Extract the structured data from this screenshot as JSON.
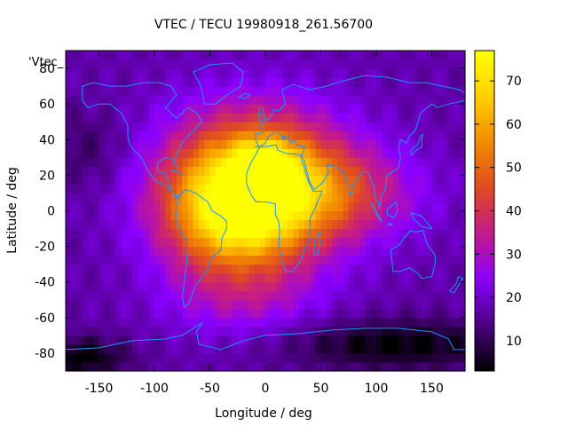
{
  "chart_data": {
    "type": "heatmap",
    "title": "VTEC / TECU 19980918_261.56700",
    "xlabel": "Longitude / deg",
    "ylabel": "Latitude / deg",
    "xlim": [
      -180,
      180
    ],
    "ylim": [
      -90,
      90
    ],
    "x_ticks": [
      -150,
      -100,
      -50,
      0,
      50,
      100,
      150
    ],
    "y_ticks": [
      80,
      60,
      40,
      20,
      0,
      -20,
      -40,
      -60,
      -80
    ],
    "colorbar": {
      "range": [
        3,
        77
      ],
      "ticks": [
        10,
        20,
        30,
        40,
        50,
        60,
        70
      ]
    },
    "colormap": [
      "#000000",
      "#4b0080",
      "#8a00ff",
      "#c41a8a",
      "#e04a20",
      "#f28a00",
      "#ffd000",
      "#ffff00"
    ],
    "key_label": "'Vtec_",
    "grid_step_deg": 5,
    "field_model": {
      "background": 17,
      "components": [
        {
          "lon": -10,
          "lat": 15,
          "amp": 52,
          "sigma_lon": 55,
          "sigma_lat": 28
        },
        {
          "lon": -30,
          "lat": -5,
          "amp": 30,
          "sigma_lon": 40,
          "sigma_lat": 22
        },
        {
          "lon": 0,
          "lat": 25,
          "amp": 22,
          "sigma_lon": 18,
          "sigma_lat": 10
        },
        {
          "lon": 60,
          "lat": 10,
          "amp": 18,
          "sigma_lon": 55,
          "sigma_lat": 18
        },
        {
          "lon": -20,
          "lat": -50,
          "amp": 10,
          "sigma_lon": 50,
          "sigma_lat": 15
        },
        {
          "lon": 120,
          "lat": -75,
          "amp": -14,
          "sigma_lon": 70,
          "sigma_lat": 10
        },
        {
          "lon": -165,
          "lat": -82,
          "amp": -14,
          "sigma_lon": 30,
          "sigma_lat": 8
        },
        {
          "lon": -160,
          "lat": 35,
          "amp": -6,
          "sigma_lon": 25,
          "sigma_lat": 15
        }
      ]
    },
    "coastline_color": "#1e90ff",
    "coastlines": [
      [
        [
          -165,
          70
        ],
        [
          -155,
          72
        ],
        [
          -140,
          70
        ],
        [
          -125,
          70
        ],
        [
          -110,
          72
        ],
        [
          -95,
          72
        ],
        [
          -85,
          70
        ],
        [
          -80,
          65
        ],
        [
          -90,
          58
        ],
        [
          -80,
          52
        ],
        [
          -70,
          58
        ],
        [
          -62,
          55
        ],
        [
          -57,
          50
        ],
        [
          -65,
          45
        ],
        [
          -70,
          42
        ],
        [
          -76,
          37
        ],
        [
          -80,
          32
        ],
        [
          -82,
          27
        ],
        [
          -80,
          25
        ],
        [
          -83,
          29
        ],
        [
          -90,
          30
        ],
        [
          -97,
          27
        ],
        [
          -97,
          22
        ],
        [
          -90,
          21
        ],
        [
          -87,
          15
        ],
        [
          -83,
          9
        ],
        [
          -78,
          8
        ],
        [
          -80,
          7
        ],
        [
          -86,
          12
        ],
        [
          -92,
          15
        ],
        [
          -100,
          17
        ],
        [
          -106,
          23
        ],
        [
          -112,
          30
        ],
        [
          -117,
          33
        ],
        [
          -122,
          37
        ],
        [
          -124,
          42
        ],
        [
          -124,
          48
        ],
        [
          -130,
          55
        ],
        [
          -140,
          60
        ],
        [
          -150,
          60
        ],
        [
          -160,
          58
        ],
        [
          -165,
          62
        ],
        [
          -165,
          70
        ]
      ],
      [
        [
          -78,
          8
        ],
        [
          -72,
          12
        ],
        [
          -63,
          10
        ],
        [
          -52,
          5
        ],
        [
          -48,
          0
        ],
        [
          -40,
          -3
        ],
        [
          -35,
          -6
        ],
        [
          -35,
          -10
        ],
        [
          -39,
          -15
        ],
        [
          -40,
          -22
        ],
        [
          -48,
          -26
        ],
        [
          -53,
          -34
        ],
        [
          -58,
          -38
        ],
        [
          -63,
          -42
        ],
        [
          -66,
          -47
        ],
        [
          -69,
          -52
        ],
        [
          -73,
          -54
        ],
        [
          -75,
          -48
        ],
        [
          -73,
          -40
        ],
        [
          -71,
          -30
        ],
        [
          -70,
          -18
        ],
        [
          -76,
          -12
        ],
        [
          -81,
          -5
        ],
        [
          -80,
          0
        ],
        [
          -78,
          8
        ]
      ],
      [
        [
          -55,
          60
        ],
        [
          -45,
          60
        ],
        [
          -35,
          65
        ],
        [
          -22,
          70
        ],
        [
          -20,
          78
        ],
        [
          -30,
          83
        ],
        [
          -50,
          82
        ],
        [
          -65,
          78
        ],
        [
          -58,
          70
        ],
        [
          -55,
          60
        ]
      ],
      [
        [
          -10,
          36
        ],
        [
          -6,
          36
        ],
        [
          -9,
          40
        ],
        [
          -9,
          43
        ],
        [
          -2,
          44
        ],
        [
          -5,
          48
        ],
        [
          0,
          50
        ],
        [
          5,
          53
        ],
        [
          8,
          57
        ],
        [
          12,
          56
        ],
        [
          18,
          60
        ],
        [
          15,
          68
        ],
        [
          25,
          71
        ],
        [
          40,
          68
        ],
        [
          55,
          70
        ],
        [
          70,
          73
        ],
        [
          90,
          76
        ],
        [
          110,
          75
        ],
        [
          130,
          72
        ],
        [
          145,
          72
        ],
        [
          160,
          70
        ],
        [
          175,
          68
        ],
        [
          180,
          66
        ],
        [
          180,
          62
        ],
        [
          165,
          60
        ],
        [
          155,
          58
        ],
        [
          150,
          60
        ],
        [
          140,
          55
        ],
        [
          135,
          45
        ],
        [
          130,
          42
        ],
        [
          127,
          38
        ],
        [
          122,
          40
        ],
        [
          120,
          35
        ],
        [
          122,
          30
        ],
        [
          120,
          24
        ],
        [
          110,
          20
        ],
        [
          108,
          12
        ],
        [
          105,
          9
        ],
        [
          103,
          2
        ],
        [
          99,
          8
        ],
        [
          97,
          15
        ],
        [
          92,
          22
        ],
        [
          88,
          22
        ],
        [
          80,
          15
        ],
        [
          77,
          8
        ],
        [
          73,
          18
        ],
        [
          70,
          22
        ],
        [
          62,
          25
        ],
        [
          55,
          26
        ],
        [
          57,
          22
        ],
        [
          52,
          16
        ],
        [
          44,
          12
        ],
        [
          40,
          16
        ],
        [
          35,
          28
        ],
        [
          33,
          31
        ],
        [
          35,
          36
        ],
        [
          28,
          37
        ],
        [
          26,
          40
        ],
        [
          23,
          38
        ],
        [
          20,
          42
        ],
        [
          15,
          41
        ],
        [
          18,
          40
        ],
        [
          12,
          44
        ],
        [
          8,
          44
        ],
        [
          3,
          42
        ],
        [
          0,
          38
        ],
        [
          -5,
          36
        ],
        [
          -10,
          36
        ]
      ],
      [
        [
          -17,
          21
        ],
        [
          -17,
          15
        ],
        [
          -12,
          8
        ],
        [
          -8,
          5
        ],
        [
          0,
          5
        ],
        [
          9,
          4
        ],
        [
          9,
          -2
        ],
        [
          12,
          -6
        ],
        [
          13,
          -12
        ],
        [
          12,
          -18
        ],
        [
          15,
          -28
        ],
        [
          18,
          -34
        ],
        [
          25,
          -34
        ],
        [
          32,
          -28
        ],
        [
          35,
          -22
        ],
        [
          40,
          -15
        ],
        [
          40,
          -5
        ],
        [
          45,
          2
        ],
        [
          51,
          11
        ],
        [
          43,
          11
        ],
        [
          39,
          16
        ],
        [
          33,
          28
        ],
        [
          32,
          31
        ],
        [
          25,
          32
        ],
        [
          20,
          32
        ],
        [
          11,
          34
        ],
        [
          10,
          37
        ],
        [
          0,
          36
        ],
        [
          -5,
          36
        ],
        [
          -10,
          30
        ],
        [
          -13,
          27
        ],
        [
          -17,
          21
        ]
      ],
      [
        [
          113,
          -22
        ],
        [
          115,
          -34
        ],
        [
          122,
          -34
        ],
        [
          130,
          -32
        ],
        [
          137,
          -35
        ],
        [
          141,
          -38
        ],
        [
          150,
          -37
        ],
        [
          153,
          -30
        ],
        [
          153,
          -25
        ],
        [
          146,
          -19
        ],
        [
          142,
          -11
        ],
        [
          136,
          -12
        ],
        [
          131,
          -11
        ],
        [
          125,
          -15
        ],
        [
          121,
          -19
        ],
        [
          113,
          -22
        ]
      ],
      [
        [
          -180,
          -78
        ],
        [
          -150,
          -77
        ],
        [
          -120,
          -73
        ],
        [
          -90,
          -72
        ],
        [
          -75,
          -70
        ],
        [
          -60,
          -64
        ],
        [
          -57,
          -63
        ],
        [
          -62,
          -68
        ],
        [
          -60,
          -75
        ],
        [
          -40,
          -78
        ],
        [
          -20,
          -73
        ],
        [
          0,
          -70
        ],
        [
          30,
          -69
        ],
        [
          60,
          -67
        ],
        [
          90,
          -66
        ],
        [
          120,
          -66
        ],
        [
          150,
          -68
        ],
        [
          165,
          -72
        ],
        [
          170,
          -78
        ],
        [
          180,
          -78
        ]
      ],
      [
        [
          44,
          -25
        ],
        [
          47,
          -25
        ],
        [
          50,
          -15
        ],
        [
          49,
          -12
        ],
        [
          44,
          -17
        ],
        [
          44,
          -25
        ]
      ],
      [
        [
          -6,
          50
        ],
        [
          -3,
          51
        ],
        [
          1,
          51
        ],
        [
          -2,
          55
        ],
        [
          -3,
          58
        ],
        [
          -6,
          57
        ],
        [
          -5,
          54
        ],
        [
          -6,
          50
        ]
      ],
      [
        [
          131,
          31
        ],
        [
          136,
          34
        ],
        [
          141,
          36
        ],
        [
          141,
          40
        ],
        [
          142,
          43
        ],
        [
          140,
          42
        ],
        [
          137,
          37
        ],
        [
          131,
          34
        ],
        [
          131,
          31
        ]
      ],
      [
        [
          95,
          5
        ],
        [
          105,
          -6
        ],
        [
          102,
          -4
        ],
        [
          95,
          5
        ]
      ],
      [
        [
          110,
          -8
        ],
        [
          114,
          -8
        ],
        [
          112,
          -7
        ],
        [
          110,
          -8
        ]
      ],
      [
        [
          110,
          1
        ],
        [
          118,
          5
        ],
        [
          119,
          0
        ],
        [
          116,
          -4
        ],
        [
          110,
          -2
        ],
        [
          110,
          1
        ]
      ],
      [
        [
          131,
          -1
        ],
        [
          141,
          -3
        ],
        [
          150,
          -10
        ],
        [
          141,
          -9
        ],
        [
          133,
          -4
        ],
        [
          131,
          -1
        ]
      ],
      [
        [
          166,
          -45
        ],
        [
          172,
          -41
        ],
        [
          174,
          -37
        ],
        [
          178,
          -38
        ],
        [
          174,
          -42
        ],
        [
          170,
          -46
        ],
        [
          166,
          -45
        ]
      ],
      [
        [
          -24,
          64
        ],
        [
          -18,
          66
        ],
        [
          -14,
          65
        ],
        [
          -18,
          63
        ],
        [
          -24,
          64
        ]
      ],
      [
        [
          -85,
          22
        ],
        [
          -78,
          22
        ],
        [
          -74,
          20
        ],
        [
          -80,
          23
        ],
        [
          -85,
          22
        ]
      ]
    ]
  }
}
